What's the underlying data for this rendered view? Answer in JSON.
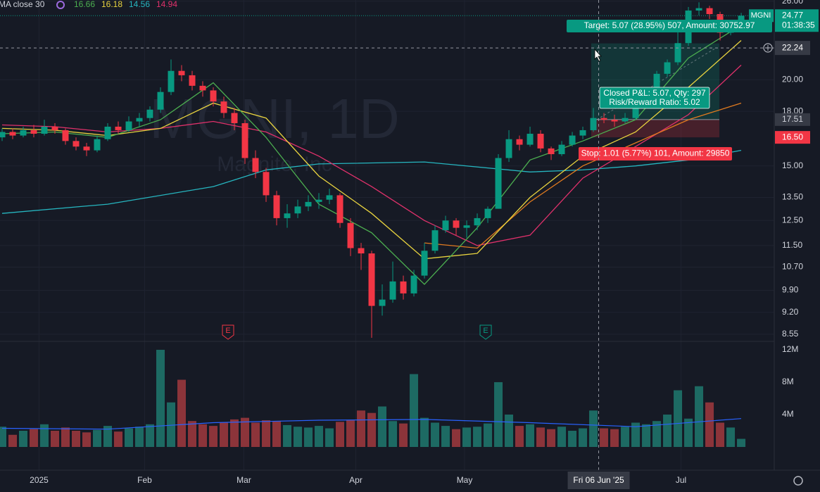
{
  "chart_data": {
    "type": "candlestick",
    "legend": {
      "label": "MA close 30",
      "values": [
        16.66,
        16.18,
        14.56,
        14.94
      ],
      "colors": [
        "#4caf50",
        "#e8d33f",
        "#26b6c0",
        "#e0316b"
      ]
    },
    "watermark": "MGNI, 1D",
    "watermark_sub": "Magnite, Inc",
    "xlim": [
      -0.2,
      73.13
    ],
    "xticks": [
      {
        "value": 3.5,
        "label": "2025"
      },
      {
        "value": 13.5,
        "label": "Feb"
      },
      {
        "value": 22.9,
        "label": "Mar"
      },
      {
        "value": 33.5,
        "label": "Apr"
      },
      {
        "value": 43.8,
        "label": "May"
      },
      {
        "value": 64.3,
        "label": "Jul"
      }
    ],
    "ylim": [
      8.35,
      26.1
    ],
    "log": true,
    "grid": true,
    "yticks": [
      {
        "value": 8.55,
        "label": "8.55"
      },
      {
        "value": 9.2,
        "label": "9.20"
      },
      {
        "value": 9.9,
        "label": "9.90"
      },
      {
        "value": 10.7,
        "label": "10.70"
      },
      {
        "value": 11.5,
        "label": "11.50"
      },
      {
        "value": 12.5,
        "label": "12.50"
      },
      {
        "value": 13.5,
        "label": "13.50"
      },
      {
        "value": 15,
        "label": "15.00"
      },
      {
        "value": 18,
        "label": "18.00"
      },
      {
        "value": 20,
        "label": "20.00"
      },
      {
        "value": 26,
        "label": "26.00"
      }
    ],
    "candles": {
      "up_color": "#089981",
      "down_color": "#f23645",
      "ohlc": [
        [
          16.5,
          17.0,
          16.3,
          16.8
        ],
        [
          16.8,
          17.0,
          16.4,
          16.6
        ],
        [
          16.6,
          17.1,
          16.5,
          16.9
        ],
        [
          16.9,
          17.2,
          16.5,
          16.7
        ],
        [
          16.7,
          17.5,
          16.6,
          17.1
        ],
        [
          17.1,
          17.3,
          16.7,
          16.9
        ],
        [
          16.9,
          17.0,
          16.1,
          16.3
        ],
        [
          16.3,
          16.5,
          15.8,
          16.0
        ],
        [
          16.0,
          16.2,
          15.5,
          15.8
        ],
        [
          15.8,
          16.6,
          15.7,
          16.4
        ],
        [
          16.4,
          17.3,
          16.3,
          17.1
        ],
        [
          17.1,
          17.4,
          16.7,
          16.9
        ],
        [
          16.9,
          17.7,
          16.8,
          17.4
        ],
        [
          17.4,
          17.9,
          17.1,
          17.6
        ],
        [
          17.6,
          18.3,
          17.4,
          18.1
        ],
        [
          18.1,
          19.5,
          17.9,
          19.2
        ],
        [
          19.2,
          21.4,
          19.0,
          20.6
        ],
        [
          20.6,
          21.0,
          19.9,
          20.3
        ],
        [
          20.3,
          20.6,
          19.3,
          19.6
        ],
        [
          19.6,
          19.9,
          18.9,
          19.3
        ],
        [
          19.3,
          19.5,
          18.3,
          18.6
        ],
        [
          18.6,
          18.9,
          17.6,
          17.9
        ],
        [
          17.9,
          18.2,
          16.9,
          17.3
        ],
        [
          17.3,
          17.5,
          15.1,
          15.4
        ],
        [
          15.4,
          15.8,
          14.4,
          14.7
        ],
        [
          14.7,
          14.9,
          13.3,
          13.6
        ],
        [
          13.6,
          13.8,
          12.3,
          12.6
        ],
        [
          12.6,
          13.2,
          12.2,
          12.8
        ],
        [
          12.8,
          13.4,
          12.6,
          13.1
        ],
        [
          13.1,
          13.6,
          12.9,
          13.3
        ],
        [
          13.3,
          13.7,
          13.0,
          13.4
        ],
        [
          13.4,
          13.9,
          13.2,
          13.6
        ],
        [
          13.6,
          13.7,
          12.2,
          12.4
        ],
        [
          12.4,
          12.6,
          11.1,
          11.4
        ],
        [
          11.4,
          11.6,
          10.6,
          11.2
        ],
        [
          11.2,
          11.3,
          8.45,
          9.4
        ],
        [
          9.4,
          10.1,
          9.1,
          9.6
        ],
        [
          9.6,
          10.9,
          9.5,
          10.2
        ],
        [
          10.2,
          10.4,
          9.6,
          9.8
        ],
        [
          9.8,
          10.6,
          9.7,
          10.4
        ],
        [
          10.4,
          11.6,
          10.3,
          11.3
        ],
        [
          11.3,
          12.3,
          11.2,
          12.1
        ],
        [
          12.1,
          12.7,
          12.0,
          12.5
        ],
        [
          12.5,
          12.6,
          11.9,
          12.2
        ],
        [
          12.2,
          12.5,
          11.8,
          12.3
        ],
        [
          12.3,
          12.8,
          12.1,
          12.6
        ],
        [
          12.6,
          13.1,
          12.4,
          13.0
        ],
        [
          13.0,
          15.6,
          13.0,
          15.4
        ],
        [
          15.4,
          16.9,
          15.2,
          16.4
        ],
        [
          16.4,
          16.6,
          15.8,
          16.1
        ],
        [
          16.1,
          17.1,
          16.0,
          16.7
        ],
        [
          16.7,
          16.9,
          15.7,
          15.9
        ],
        [
          15.9,
          16.0,
          15.3,
          15.6
        ],
        [
          15.6,
          16.3,
          15.5,
          16.1
        ],
        [
          16.1,
          16.8,
          16.0,
          16.6
        ],
        [
          16.6,
          17.1,
          16.4,
          16.9
        ],
        [
          16.9,
          18.2,
          16.8,
          17.6
        ],
        [
          17.6,
          17.9,
          17.3,
          17.5
        ],
        [
          17.5,
          17.8,
          17.1,
          17.4
        ],
        [
          17.4,
          17.9,
          17.3,
          17.6
        ],
        [
          17.6,
          18.6,
          17.5,
          18.4
        ],
        [
          18.4,
          19.5,
          18.3,
          19.3
        ],
        [
          19.3,
          20.6,
          19.2,
          20.4
        ],
        [
          20.4,
          21.4,
          20.2,
          21.2
        ],
        [
          21.2,
          23.9,
          21.0,
          22.6
        ],
        [
          22.6,
          25.5,
          22.4,
          25.2
        ],
        [
          25.2,
          25.9,
          24.8,
          25.4
        ],
        [
          25.4,
          25.6,
          24.5,
          24.9
        ],
        [
          24.9,
          25.1,
          22.8,
          23.4
        ],
        [
          23.4,
          24.3,
          23.2,
          24.0
        ],
        [
          24.0,
          25.0,
          23.8,
          24.77
        ]
      ]
    },
    "ma": [
      {
        "color": "#26b6c0",
        "x": [
          0,
          10,
          20,
          25,
          30,
          40,
          50,
          55,
          60,
          65,
          70
        ],
        "values": [
          12.8,
          13.2,
          14.0,
          14.8,
          15.1,
          15.2,
          14.7,
          14.8,
          15.0,
          15.3,
          15.8
        ]
      },
      {
        "color": "#e0316b",
        "x": [
          0,
          5,
          10,
          15,
          20,
          25,
          30,
          35,
          40,
          45,
          50,
          55,
          60,
          65,
          70
        ],
        "values": [
          17.2,
          17.1,
          16.8,
          17.0,
          17.4,
          16.8,
          15.5,
          14.0,
          12.5,
          11.5,
          11.9,
          14.4,
          16.0,
          17.8,
          21.0
        ]
      },
      {
        "color": "#e07a1f",
        "x": [
          40,
          45,
          50,
          55,
          60,
          65,
          70
        ],
        "values": [
          11.6,
          11.4,
          13.3,
          15.0,
          16.2,
          17.5,
          18.5
        ]
      },
      {
        "color": "#e8d33f",
        "x": [
          0,
          5,
          10,
          15,
          20,
          25,
          30,
          35,
          40,
          45,
          50,
          55,
          60,
          65,
          70
        ],
        "values": [
          17.0,
          16.9,
          16.6,
          17.0,
          18.5,
          17.6,
          14.5,
          12.8,
          11.0,
          11.2,
          13.5,
          15.5,
          16.8,
          19.5,
          22.8
        ]
      },
      {
        "color": "#4caf50",
        "x": [
          0,
          5,
          10,
          15,
          20,
          25,
          30,
          35,
          40,
          45,
          50,
          55,
          60,
          65,
          70
        ],
        "values": [
          16.7,
          16.8,
          16.5,
          17.5,
          19.8,
          16.5,
          13.2,
          12.0,
          10.1,
          12.2,
          15.3,
          16.3,
          17.5,
          21.5,
          24.0
        ]
      }
    ],
    "volume": {
      "ylim": [
        0,
        13040000
      ],
      "yticks": [
        {
          "value": 4000000,
          "label": "4M"
        },
        {
          "value": 8000000,
          "label": "8M"
        },
        {
          "value": 12000000,
          "label": "12M"
        }
      ],
      "up_color": "#1d6a63",
      "down_color": "#8c343a",
      "values": [
        2500000,
        1500000,
        2000000,
        2200000,
        2800000,
        2000000,
        2400000,
        2000000,
        1800000,
        2100000,
        2600000,
        1900000,
        2300000,
        2500000,
        2800000,
        12000000,
        5500000,
        8300000,
        3200000,
        2800000,
        2600000,
        3000000,
        3400000,
        3600000,
        3000000,
        3300000,
        3200000,
        2700000,
        2500000,
        2400000,
        2600000,
        2300000,
        3100000,
        3300000,
        4500000,
        4200000,
        5000000,
        3200000,
        2900000,
        9000000,
        3600000,
        3000000,
        2600000,
        2200000,
        2400000,
        2500000,
        2900000,
        8000000,
        4000000,
        2600000,
        2800000,
        2400000,
        2200000,
        2500000,
        2000000,
        2300000,
        4500000,
        2300000,
        2200000,
        2500000,
        3000000,
        2800000,
        3200000,
        4000000,
        7000000,
        3500000,
        7500000,
        5500000,
        3000000,
        2400000,
        1000000
      ],
      "ma": {
        "color": "#2962ff",
        "x": [
          0,
          10,
          20,
          30,
          40,
          50,
          60,
          70
        ],
        "values": [
          2300000,
          2200000,
          3000000,
          3300000,
          3400000,
          3000000,
          2500000,
          3500000
        ]
      }
    },
    "position": {
      "entry": 17.51,
      "stop": {
        "value": 16.5,
        "label": "16.50"
      },
      "target": 22.58,
      "target_label": "Target: 5.07 (28.95%) 507, Amount: 30752.97",
      "pnl_label": "Closed P&L: 5.07, Qty: 297",
      "rr_label": "Risk/Reward Ratio: 5.02",
      "stop_label": "Stop: 1.01 (5.77%) 101, Amount: 29850"
    },
    "last_price": 24.77,
    "countdown": "01:38:35",
    "symbol": "MGNI",
    "crosshair": {
      "x": 56.5,
      "label": "Fri 06 Jun '25",
      "price": 22.24
    },
    "earnings": [
      {
        "x": 21.4,
        "label": "E",
        "color": "#f23645"
      },
      {
        "x": 45.8,
        "label": "E",
        "color": "#089981"
      }
    ]
  }
}
